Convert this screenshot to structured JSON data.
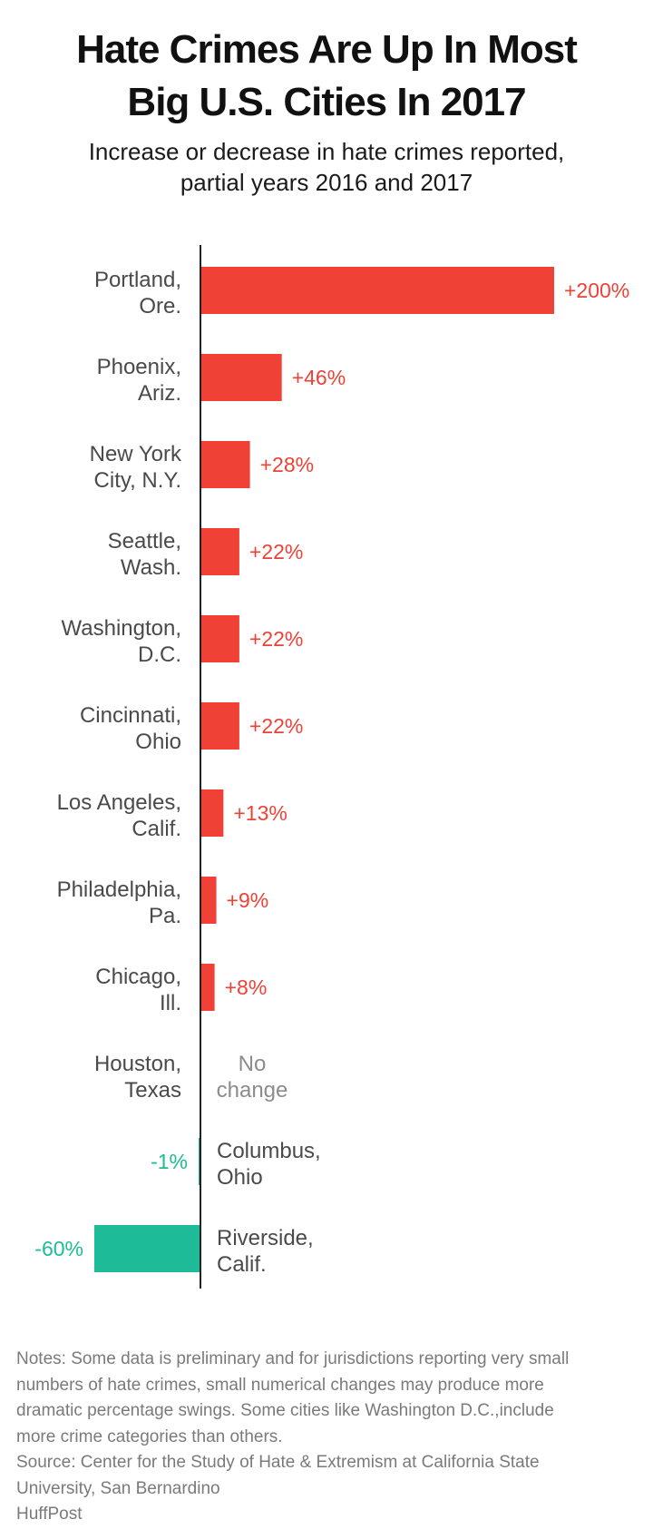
{
  "title_lines": [
    "Hate Crimes Are Up In Most",
    "Big U.S. Cities In 2017"
  ],
  "subtitle_lines": [
    "Increase or decrease in hate crimes reported,",
    "partial years 2016 and 2017"
  ],
  "colors": {
    "increase": "#ef4136",
    "decrease": "#1dbb97",
    "no_change": "#8c8c8c",
    "label": "#4a4a4a",
    "axis": "#222222"
  },
  "chart_data": {
    "type": "bar",
    "orientation": "horizontal",
    "title": "Hate Crimes Are Up In Most Big U.S. Cities In 2017",
    "subtitle": "Increase or decrease in hate crimes reported, partial years 2016 and 2017",
    "xlabel": "",
    "ylabel": "",
    "xlim": [
      -60,
      200
    ],
    "grid": false,
    "legend": "none",
    "categories": [
      [
        "Portland,",
        "Ore."
      ],
      [
        "Phoenix,",
        "Ariz."
      ],
      [
        "New York",
        "City, N.Y."
      ],
      [
        "Seattle,",
        "Wash."
      ],
      [
        "Washington,",
        "D.C."
      ],
      [
        "Cincinnati,",
        "Ohio"
      ],
      [
        "Los Angeles,",
        "Calif."
      ],
      [
        "Philadelphia,",
        "Pa."
      ],
      [
        "Chicago,",
        "Ill."
      ],
      [
        "Houston,",
        "Texas"
      ],
      [
        "Columbus,",
        "Ohio"
      ],
      [
        "Riverside,",
        "Calif."
      ]
    ],
    "values": [
      200,
      46,
      28,
      22,
      22,
      22,
      13,
      9,
      8,
      0,
      -1,
      -60
    ],
    "value_labels": [
      "+200%",
      "+46%",
      "+28%",
      "+22%",
      "+22%",
      "+22%",
      "+13%",
      "+9%",
      "+8%",
      "",
      "-1%",
      "-60%"
    ],
    "zero_label_lines": [
      "No",
      "change"
    ]
  },
  "notes": {
    "lines": [
      "Notes: Some data is preliminary and for jurisdictions reporting very small",
      "numbers of hate crimes, small numerical changes may produce more",
      "dramatic percentage swings. Some cities like Washington D.C.,include",
      "more crime categories than others."
    ],
    "source_lines": [
      "Source: Center for the Study of Hate & Extremism at California State",
      "University, San Bernardino"
    ],
    "credit": "HuffPost"
  }
}
